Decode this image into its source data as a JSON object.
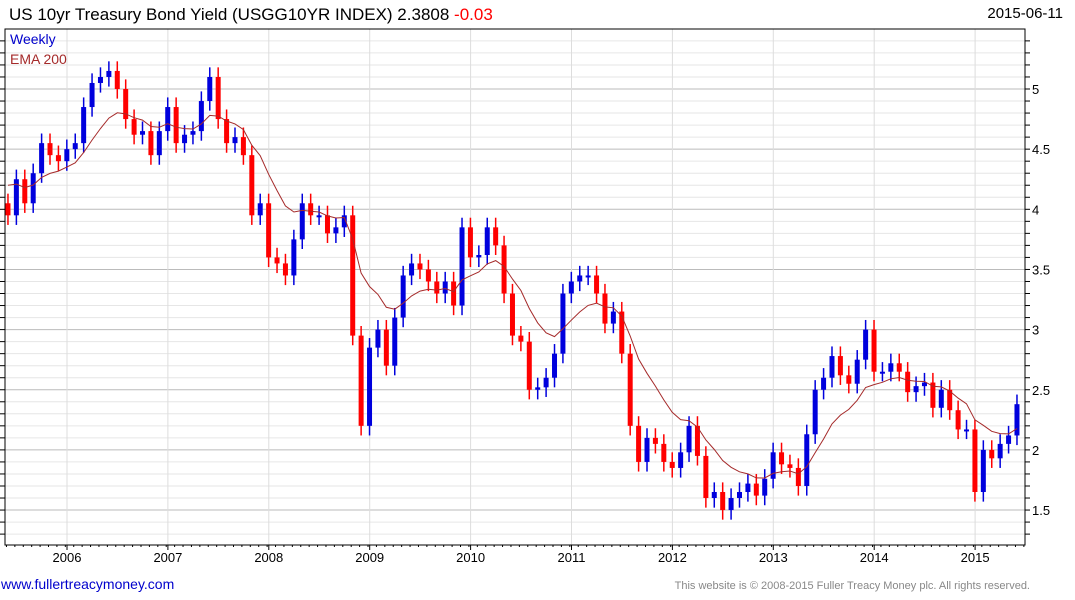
{
  "header": {
    "title": "US 10yr Treasury Bond Yield (USGG10YR INDEX) 2.3808",
    "change": "-0.03",
    "date": "2015-06-11"
  },
  "footer": {
    "site_link": "www.fullertreacymoney.com",
    "copyright": "This website is © 2008-2015 Fuller Treacy Money plc. All rights reserved."
  },
  "colors": {
    "up": "#0000dd",
    "down": "#ff0000",
    "ema": "#a52a2a"
  },
  "chart_data": {
    "type": "bar",
    "subtype": "ohlc-weekly (approximated by monthly closes)",
    "title": "US 10yr Treasury Bond Yield (USGG10YR INDEX)",
    "legend": [
      "Weekly",
      "EMA 200"
    ],
    "legend_placement": "top-left",
    "ylim": [
      1.21,
      5.5
    ],
    "xlim": [
      2005.39,
      2015.5
    ],
    "y_ticks": [
      "1.5",
      "2",
      "2.5",
      "3",
      "3.5",
      "4",
      "4.5",
      "5"
    ],
    "x_ticks": [
      "2006",
      "2007",
      "2008",
      "2009",
      "2010",
      "2011",
      "2012",
      "2013",
      "2014",
      "2015"
    ],
    "start": "2005-06",
    "frequency": "monthly",
    "closes": [
      3.95,
      4.25,
      4.05,
      4.3,
      4.55,
      4.45,
      4.4,
      4.5,
      4.55,
      4.85,
      5.05,
      5.1,
      5.15,
      5.0,
      4.75,
      4.62,
      4.65,
      4.45,
      4.65,
      4.85,
      4.55,
      4.62,
      4.65,
      4.9,
      5.1,
      4.75,
      4.55,
      4.6,
      4.45,
      3.95,
      4.05,
      3.6,
      3.55,
      3.45,
      3.75,
      4.05,
      3.95,
      3.95,
      3.8,
      3.85,
      3.95,
      2.95,
      2.2,
      2.85,
      3.0,
      2.7,
      3.1,
      3.45,
      3.55,
      3.5,
      3.4,
      3.3,
      3.4,
      3.2,
      3.85,
      3.6,
      3.62,
      3.85,
      3.7,
      3.3,
      2.95,
      2.9,
      2.5,
      2.52,
      2.6,
      2.8,
      3.3,
      3.4,
      3.45,
      3.45,
      3.3,
      3.05,
      3.15,
      2.8,
      2.2,
      1.9,
      2.1,
      2.05,
      1.9,
      1.85,
      1.98,
      2.2,
      1.95,
      1.6,
      1.65,
      1.5,
      1.6,
      1.65,
      1.72,
      1.62,
      1.76,
      1.98,
      1.88,
      1.85,
      1.7,
      2.13,
      2.5,
      2.6,
      2.78,
      2.62,
      2.55,
      2.75,
      3.0,
      2.65,
      2.65,
      2.72,
      2.65,
      2.48,
      2.53,
      2.56,
      2.35,
      2.5,
      2.33,
      2.17,
      2.17,
      1.65,
      2.0,
      1.93,
      2.05,
      2.12,
      2.38
    ],
    "last_value": 2.3808,
    "last_change": -0.03
  }
}
